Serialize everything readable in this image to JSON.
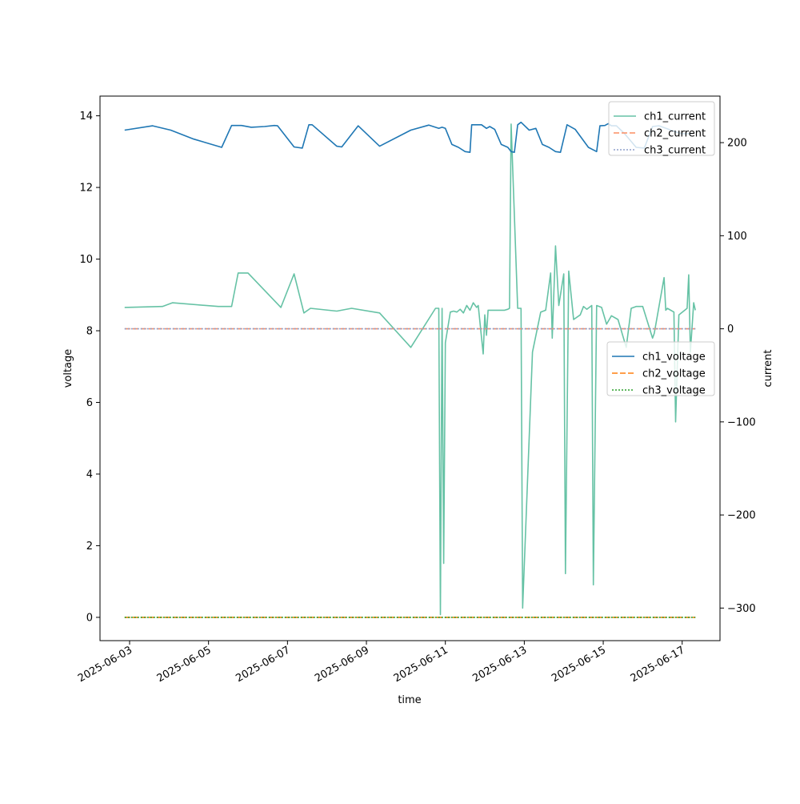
{
  "chart_data": {
    "type": "line",
    "xlabel": "time",
    "ylabel_left": "voltage",
    "ylabel_right": "current",
    "x_ticks": [
      "2025-06-03",
      "2025-06-05",
      "2025-06-07",
      "2025-06-09",
      "2025-06-11",
      "2025-06-13",
      "2025-06-15",
      "2025-06-17"
    ],
    "xlim": [
      "2025-06-02T06:00",
      "2025-06-17T23:00"
    ],
    "ylim_left": [
      -0.65,
      14.55
    ],
    "ylim_right": [
      -335,
      250
    ],
    "y_ticks_left": [
      0,
      2,
      4,
      6,
      8,
      10,
      12,
      14
    ],
    "y_ticks_right": [
      -300,
      -200,
      -100,
      0,
      100,
      200
    ],
    "grid": false,
    "legends": {
      "current": {
        "placement": "top-right",
        "entries": [
          "ch1_current",
          "ch2_current",
          "ch3_current"
        ]
      },
      "voltage": {
        "placement": "center-right",
        "entries": [
          "ch1_voltage",
          "ch2_voltage",
          "ch3_voltage"
        ]
      }
    },
    "voltage_series": [
      {
        "name": "ch1_voltage",
        "color": "#1f77b4",
        "dash": "solid",
        "x": [
          "2025-06-02T21:00",
          "2025-06-03T14:00",
          "2025-06-04T01:00",
          "2025-06-04T15:00",
          "2025-06-05T08:00",
          "2025-06-05T14:00",
          "2025-06-05T20:00",
          "2025-06-06T02:00",
          "2025-06-06T10:00",
          "2025-06-06T16:00",
          "2025-06-06T18:00",
          "2025-06-07T04:00",
          "2025-06-07T09:00",
          "2025-06-07T13:00",
          "2025-06-07T15:00",
          "2025-06-08T06:00",
          "2025-06-08T09:00",
          "2025-06-08T19:00",
          "2025-06-09T08:00",
          "2025-06-10T03:00",
          "2025-06-10T14:00",
          "2025-06-10T20:00",
          "2025-06-10T22:00",
          "2025-06-11T00:00",
          "2025-06-11T04:00",
          "2025-06-11T08:00",
          "2025-06-11T12:00",
          "2025-06-11T15:00",
          "2025-06-11T16:00",
          "2025-06-11T20:00",
          "2025-06-11T22:00",
          "2025-06-12T01:00",
          "2025-06-12T03:00",
          "2025-06-12T06:00",
          "2025-06-12T10:00",
          "2025-06-12T14:00",
          "2025-06-12T16:00",
          "2025-06-12T18:00",
          "2025-06-12T20:00",
          "2025-06-12T22:00",
          "2025-06-13T03:00",
          "2025-06-13T07:00",
          "2025-06-13T11:00",
          "2025-06-13T15:00",
          "2025-06-13T19:00",
          "2025-06-13T22:00",
          "2025-06-14T02:00",
          "2025-06-14T07:00",
          "2025-06-14T15:00",
          "2025-06-14T20:00",
          "2025-06-14T22:00",
          "2025-06-15T01:00",
          "2025-06-15T03:00",
          "2025-06-15T05:00",
          "2025-06-15T08:00",
          "2025-06-15T13:00",
          "2025-06-15T20:00",
          "2025-06-16T01:00",
          "2025-06-16T06:00",
          "2025-06-16T10:00",
          "2025-06-16T16:00",
          "2025-06-16T20:00",
          "2025-06-17T00:00",
          "2025-06-17T06:00"
        ],
        "y": [
          13.6,
          13.72,
          13.6,
          13.35,
          13.12,
          13.73,
          13.73,
          13.68,
          13.7,
          13.73,
          13.72,
          13.13,
          13.1,
          13.75,
          13.75,
          13.15,
          13.13,
          13.72,
          13.15,
          13.6,
          13.74,
          13.65,
          13.68,
          13.65,
          13.2,
          13.12,
          13.0,
          12.98,
          13.75,
          13.75,
          13.75,
          13.65,
          13.7,
          13.62,
          13.2,
          13.12,
          13.0,
          12.98,
          13.75,
          13.82,
          13.6,
          13.65,
          13.2,
          13.12,
          13.0,
          12.98,
          13.75,
          13.62,
          13.12,
          13.0,
          13.72,
          13.73,
          13.78,
          13.72,
          13.72,
          13.5,
          13.12,
          13.1,
          13.7,
          13.72,
          13.62,
          13.55,
          13.5,
          13.5
        ]
      },
      {
        "name": "ch2_voltage",
        "color": "#ff7f0e",
        "dash": "dashed",
        "x": [
          "2025-06-02T21:00",
          "2025-06-17T08:00"
        ],
        "y": [
          0.0,
          0.0
        ]
      },
      {
        "name": "ch3_voltage",
        "color": "#2ca02c",
        "dash": "dotted",
        "x": [
          "2025-06-02T21:00",
          "2025-06-17T08:00"
        ],
        "y": [
          0.0,
          0.0
        ]
      }
    ],
    "current_series": [
      {
        "name": "ch1_current",
        "color": "#66c2a5",
        "dash": "solid",
        "x": [
          "2025-06-02T21:00",
          "2025-06-03T20:00",
          "2025-06-04T02:00",
          "2025-06-05T06:00",
          "2025-06-05T14:00",
          "2025-06-05T18:00",
          "2025-06-06T00:00",
          "2025-06-06T20:00",
          "2025-06-07T04:00",
          "2025-06-07T10:00",
          "2025-06-07T14:00",
          "2025-06-08T06:00",
          "2025-06-08T15:00",
          "2025-06-09T08:00",
          "2025-06-10T03:00",
          "2025-06-10T18:00",
          "2025-06-10T20:00",
          "2025-06-10T21:00",
          "2025-06-10T22:00",
          "2025-06-10T23:00",
          "2025-06-11T00:00",
          "2025-06-11T03:00",
          "2025-06-11T05:00",
          "2025-06-11T07:00",
          "2025-06-11T09:00",
          "2025-06-11T11:00",
          "2025-06-11T13:00",
          "2025-06-11T15:00",
          "2025-06-11T17:00",
          "2025-06-11T19:00",
          "2025-06-11T20:00",
          "2025-06-11T23:00",
          "2025-06-12T00:00",
          "2025-06-12T01:00",
          "2025-06-12T02:00",
          "2025-06-12T05:00",
          "2025-06-12T12:00",
          "2025-06-12T14:00",
          "2025-06-12T15:00",
          "2025-06-12T16:00",
          "2025-06-12T20:00",
          "2025-06-12T22:00",
          "2025-06-12T23:00",
          "2025-06-13T05:00",
          "2025-06-13T10:00",
          "2025-06-13T13:00",
          "2025-06-13T16:00",
          "2025-06-13T17:00",
          "2025-06-13T19:00",
          "2025-06-13T21:00",
          "2025-06-14T00:00",
          "2025-06-14T01:00",
          "2025-06-14T03:00",
          "2025-06-14T06:00",
          "2025-06-14T10:00",
          "2025-06-14T12:00",
          "2025-06-14T14:00",
          "2025-06-14T17:00",
          "2025-06-14T18:00",
          "2025-06-14T20:00",
          "2025-06-14T23:00",
          "2025-06-15T02:00",
          "2025-06-15T05:00",
          "2025-06-15T09:00",
          "2025-06-15T14:00",
          "2025-06-15T17:00",
          "2025-06-15T20:00",
          "2025-06-16T00:00",
          "2025-06-16T06:00",
          "2025-06-16T07:00",
          "2025-06-16T13:00",
          "2025-06-16T14:00",
          "2025-06-16T15:00",
          "2025-06-16T19:00",
          "2025-06-16T20:00",
          "2025-06-16T22:00",
          "2025-06-17T03:00",
          "2025-06-17T04:00",
          "2025-06-17T05:00",
          "2025-06-17T07:00",
          "2025-06-17T08:00"
        ],
        "y": [
          23,
          24,
          28,
          24,
          24,
          60,
          60,
          23,
          59,
          17,
          22,
          19,
          22,
          17,
          -20,
          22,
          22,
          -307,
          22,
          -252,
          -15,
          18,
          19,
          18,
          21,
          17,
          25,
          20,
          28,
          23,
          25,
          -27,
          15,
          -7,
          20,
          20,
          20,
          21,
          22,
          220,
          22,
          22,
          -300,
          -25,
          18,
          20,
          60,
          -10,
          89,
          25,
          59,
          -263,
          62,
          10,
          15,
          24,
          21,
          25,
          -275,
          25,
          23,
          5,
          14,
          10,
          -20,
          22,
          24,
          24,
          -10,
          -5,
          55,
          20,
          22,
          18,
          -100,
          15,
          22,
          58,
          -25,
          28,
          20
        ]
      },
      {
        "name": "ch2_current",
        "color": "#fc8d62",
        "dash": "dashed",
        "x": [
          "2025-06-02T21:00",
          "2025-06-17T08:00"
        ],
        "y": [
          0.0,
          0.0
        ]
      },
      {
        "name": "ch3_current",
        "color": "#8da0cb",
        "dash": "dotted",
        "x": [
          "2025-06-02T21:00",
          "2025-06-17T08:00"
        ],
        "y": [
          0.0,
          0.0
        ]
      }
    ]
  }
}
